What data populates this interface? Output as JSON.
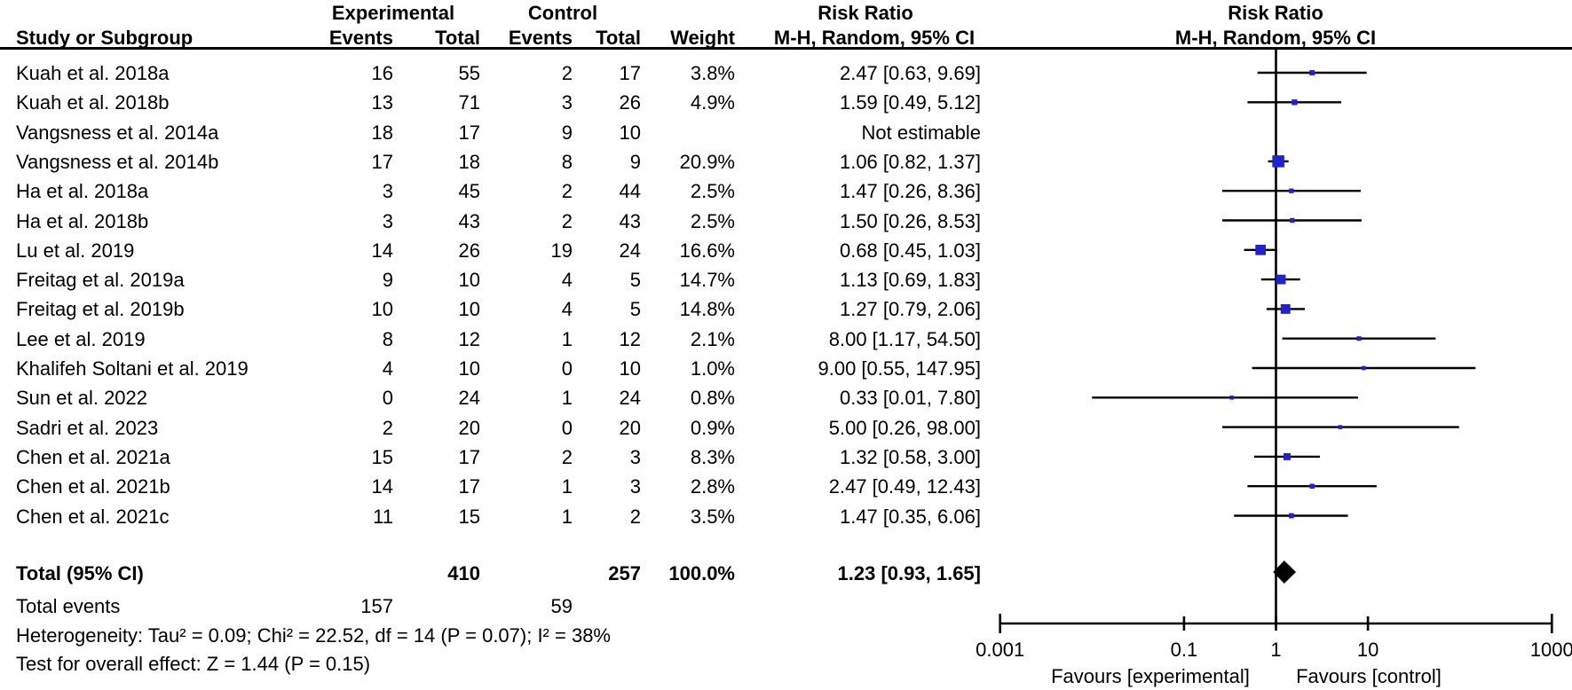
{
  "header": {
    "group_row": {
      "experimental": "Experimental",
      "control": "Control",
      "risk_ratio_left": "Risk Ratio",
      "risk_ratio_right": "Risk Ratio"
    },
    "column_row": {
      "study": "Study or Subgroup",
      "events_exp": "Events",
      "total_exp": "Total",
      "events_ctl": "Events",
      "total_ctl": "Total",
      "weight": "Weight",
      "mh_left": "M-H, Random, 95% CI",
      "mh_right": "M-H, Random, 95% CI"
    }
  },
  "chart_data": {
    "type": "forest",
    "effect_measure": "Risk Ratio",
    "method": "M-H, Random, 95% CI",
    "x_axis": {
      "scale": "log",
      "ticks": [
        0.001,
        0.1,
        1,
        10,
        1000
      ],
      "tick_labels": [
        "0.001",
        "0.1",
        "1",
        "10",
        "1000"
      ],
      "left_label": "Favours [experimental]",
      "right_label": "Favours [control]"
    },
    "studies": [
      {
        "name": "Kuah et al. 2018a",
        "e_events": 16,
        "e_total": 55,
        "c_events": 2,
        "c_total": 17,
        "weight": "3.8%",
        "rr_text": "2.47 [0.63, 9.69]",
        "rr": 2.47,
        "lo": 0.63,
        "hi": 9.69
      },
      {
        "name": "Kuah et al. 2018b",
        "e_events": 13,
        "e_total": 71,
        "c_events": 3,
        "c_total": 26,
        "weight": "4.9%",
        "rr_text": "1.59 [0.49, 5.12]",
        "rr": 1.59,
        "lo": 0.49,
        "hi": 5.12
      },
      {
        "name": "Vangsness et al. 2014a",
        "e_events": 18,
        "e_total": 17,
        "c_events": 9,
        "c_total": 10,
        "weight": "",
        "rr_text": "Not estimable",
        "rr": null,
        "lo": null,
        "hi": null
      },
      {
        "name": "Vangsness et al. 2014b",
        "e_events": 17,
        "e_total": 18,
        "c_events": 8,
        "c_total": 9,
        "weight": "20.9%",
        "rr_text": "1.06 [0.82, 1.37]",
        "rr": 1.06,
        "lo": 0.82,
        "hi": 1.37
      },
      {
        "name": "Ha et al. 2018a",
        "e_events": 3,
        "e_total": 45,
        "c_events": 2,
        "c_total": 44,
        "weight": "2.5%",
        "rr_text": "1.47 [0.26, 8.36]",
        "rr": 1.47,
        "lo": 0.26,
        "hi": 8.36
      },
      {
        "name": "Ha et al. 2018b",
        "e_events": 3,
        "e_total": 43,
        "c_events": 2,
        "c_total": 43,
        "weight": "2.5%",
        "rr_text": "1.50 [0.26, 8.53]",
        "rr": 1.5,
        "lo": 0.26,
        "hi": 8.53
      },
      {
        "name": "Lu et al. 2019",
        "e_events": 14,
        "e_total": 26,
        "c_events": 19,
        "c_total": 24,
        "weight": "16.6%",
        "rr_text": "0.68 [0.45, 1.03]",
        "rr": 0.68,
        "lo": 0.45,
        "hi": 1.03
      },
      {
        "name": "Freitag et al. 2019a",
        "e_events": 9,
        "e_total": 10,
        "c_events": 4,
        "c_total": 5,
        "weight": "14.7%",
        "rr_text": "1.13 [0.69, 1.83]",
        "rr": 1.13,
        "lo": 0.69,
        "hi": 1.83
      },
      {
        "name": "Freitag et al. 2019b",
        "e_events": 10,
        "e_total": 10,
        "c_events": 4,
        "c_total": 5,
        "weight": "14.8%",
        "rr_text": "1.27 [0.79, 2.06]",
        "rr": 1.27,
        "lo": 0.79,
        "hi": 2.06
      },
      {
        "name": "Lee et al. 2019",
        "e_events": 8,
        "e_total": 12,
        "c_events": 1,
        "c_total": 12,
        "weight": "2.1%",
        "rr_text": "8.00 [1.17, 54.50]",
        "rr": 8.0,
        "lo": 1.17,
        "hi": 54.5
      },
      {
        "name": "Khalifeh Soltani et al. 2019",
        "e_events": 4,
        "e_total": 10,
        "c_events": 0,
        "c_total": 10,
        "weight": "1.0%",
        "rr_text": "9.00 [0.55, 147.95]",
        "rr": 9.0,
        "lo": 0.55,
        "hi": 147.95
      },
      {
        "name": "Sun et al. 2022",
        "e_events": 0,
        "e_total": 24,
        "c_events": 1,
        "c_total": 24,
        "weight": "0.8%",
        "rr_text": "0.33 [0.01, 7.80]",
        "rr": 0.33,
        "lo": 0.01,
        "hi": 7.8
      },
      {
        "name": "Sadri et al. 2023",
        "e_events": 2,
        "e_total": 20,
        "c_events": 0,
        "c_total": 20,
        "weight": "0.9%",
        "rr_text": "5.00 [0.26, 98.00]",
        "rr": 5.0,
        "lo": 0.26,
        "hi": 98.0
      },
      {
        "name": "Chen et al. 2021a",
        "e_events": 15,
        "e_total": 17,
        "c_events": 2,
        "c_total": 3,
        "weight": "8.3%",
        "rr_text": "1.32 [0.58, 3.00]",
        "rr": 1.32,
        "lo": 0.58,
        "hi": 3.0
      },
      {
        "name": "Chen et al. 2021b",
        "e_events": 14,
        "e_total": 17,
        "c_events": 1,
        "c_total": 3,
        "weight": "2.8%",
        "rr_text": "2.47 [0.49, 12.43]",
        "rr": 2.47,
        "lo": 0.49,
        "hi": 12.43
      },
      {
        "name": "Chen et al. 2021c",
        "e_events": 11,
        "e_total": 15,
        "c_events": 1,
        "c_total": 2,
        "weight": "3.5%",
        "rr_text": "1.47 [0.35, 6.06]",
        "rr": 1.47,
        "lo": 0.35,
        "hi": 6.06
      }
    ],
    "total": {
      "label": "Total (95% CI)",
      "exp_total": 410,
      "ctl_total": 257,
      "weight": "100.0%",
      "rr_text": "1.23 [0.93, 1.65]",
      "rr": 1.23,
      "lo": 0.93,
      "hi": 1.65
    },
    "total_events": {
      "label": "Total events",
      "experimental": 157,
      "control": 59
    },
    "heterogeneity": "Heterogeneity: Tau² = 0.09; Chi² = 22.52, df = 14 (P = 0.07); I² = 38%",
    "overall_effect": "Test for overall effect: Z = 1.44 (P = 0.15)"
  },
  "colors": {
    "marker_blue": "#2222CC",
    "diamond_black": "#000000",
    "line_black": "#000000",
    "background": "#FFFFFF"
  }
}
